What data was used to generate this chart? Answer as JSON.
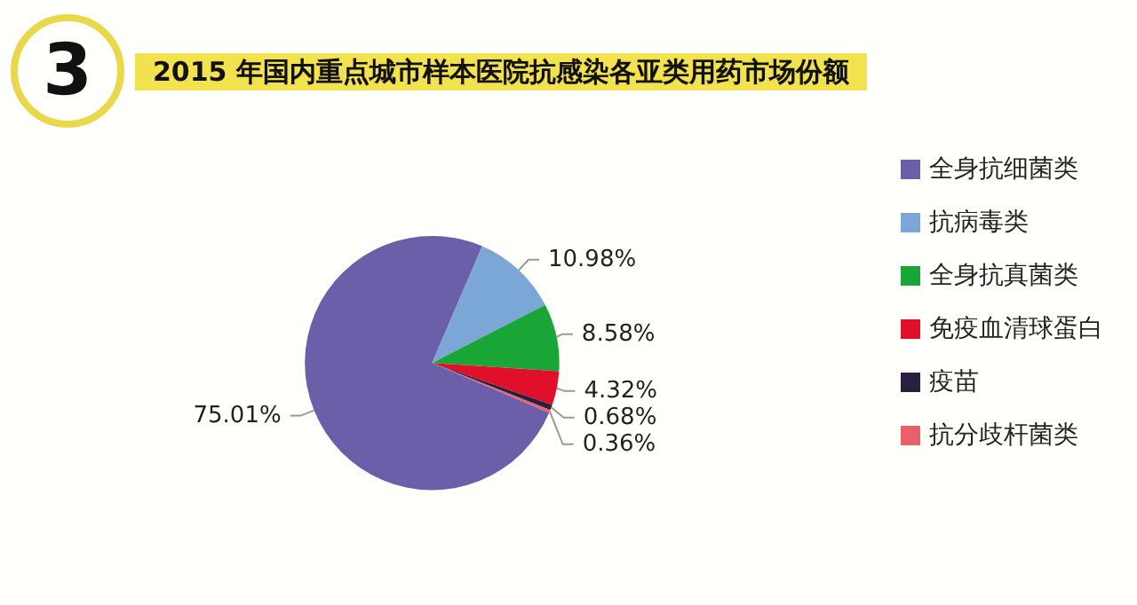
{
  "chart_data": {
    "type": "pie",
    "title": "2015 年国内重点城市样本医院抗感染各亚类用药市场份额",
    "annotations": [
      "3"
    ],
    "categories": [
      "全身抗细菌类",
      "抗病毒类",
      "全身抗真菌类",
      "免疫血清球蛋白",
      "疫苗",
      "抗分歧杆菌类"
    ],
    "values": [
      75.01,
      10.98,
      8.58,
      4.32,
      0.68,
      0.36
    ],
    "value_labels": [
      "75.01%",
      "10.98%",
      "8.58%",
      "4.32%",
      "0.68%",
      "0.36%"
    ],
    "colors": [
      "#6a5fa8",
      "#7ba7d6",
      "#1aa537",
      "#e0102a",
      "#2a1f3d",
      "#e8606a"
    ],
    "legend": "right"
  }
}
